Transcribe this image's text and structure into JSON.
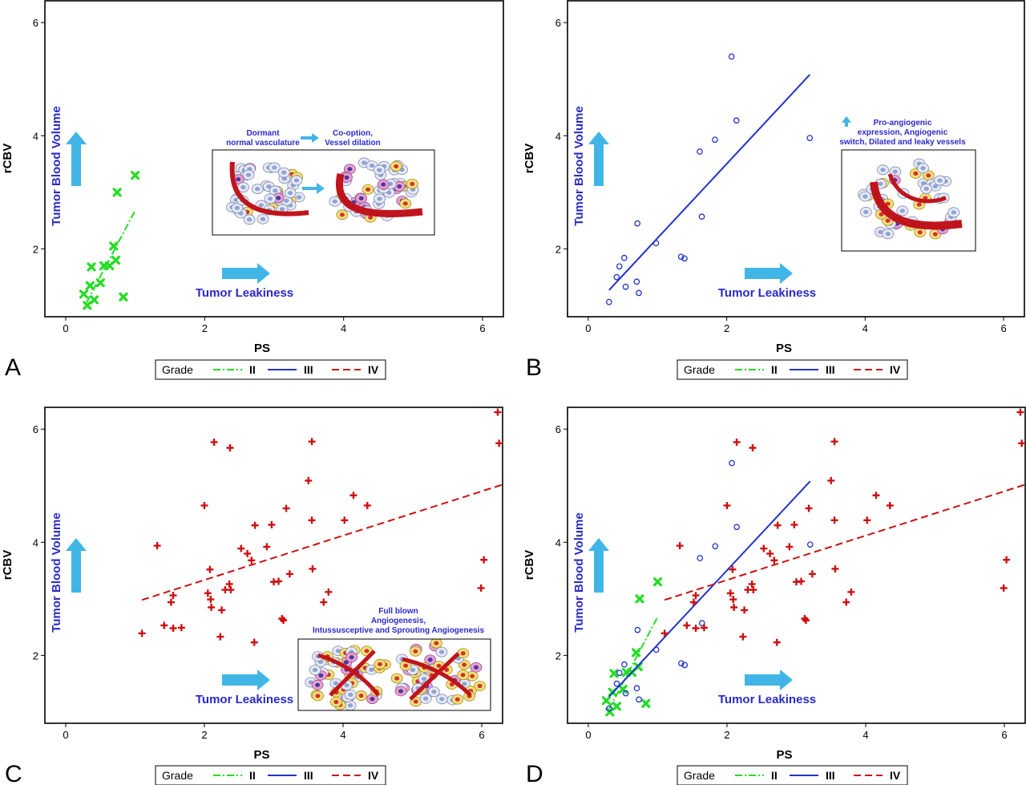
{
  "colors": {
    "grade_II": "#22dd22",
    "grade_III": "#2233cc",
    "grade_IV": "#cc1111",
    "arrow": "#41b6e6",
    "annotation_text": "#2a2ac8",
    "frame": "#000000",
    "vessel": "#c0141c"
  },
  "legend": {
    "title": "Grade",
    "entries": [
      "II",
      "III",
      "IV"
    ]
  },
  "annotations": {
    "y_arrow_label": "Tumor Blood Volume",
    "x_arrow_label": "Tumor Leakiness"
  },
  "insets": {
    "A": {
      "label_left": "Dormant normal vasculature",
      "label_right": "Co-option, Vessel dilation"
    },
    "B": {
      "label": "Pro-angiogenic expression, Angiogenic switch, Dilated and leaky vessels"
    },
    "C": {
      "label": "Full blown Angiogenesis, Intussusceptive and Sprouting Angiogenesis"
    }
  },
  "chart_data": [
    {
      "panel": "A",
      "type": "scatter",
      "xlabel": "PS",
      "ylabel": "rCBV",
      "xlim": [
        -0.3,
        6.3
      ],
      "ylim": [
        0.8,
        6.4
      ],
      "xticks": [
        0,
        2,
        4,
        6
      ],
      "yticks": [
        2,
        4,
        6
      ],
      "series": [
        {
          "name": "II",
          "marker": "x",
          "points": [
            [
              1.0,
              3.3
            ],
            [
              0.74,
              3.0
            ],
            [
              0.69,
              2.05
            ],
            [
              0.72,
              1.8
            ],
            [
              0.63,
              1.7
            ],
            [
              0.55,
              1.7
            ],
            [
              0.37,
              1.68
            ],
            [
              0.5,
              1.4
            ],
            [
              0.35,
              1.35
            ],
            [
              0.26,
              1.2
            ],
            [
              0.41,
              1.1
            ],
            [
              0.83,
              1.15
            ],
            [
              0.31,
              1.0
            ]
          ],
          "fit": [
            [
              0.3,
              1.05
            ],
            [
              1.0,
              2.68
            ]
          ]
        }
      ]
    },
    {
      "panel": "B",
      "type": "scatter",
      "xlabel": "PS",
      "ylabel": "rCBV",
      "xlim": [
        -0.3,
        6.3
      ],
      "ylim": [
        0.8,
        6.4
      ],
      "xticks": [
        0,
        2,
        4,
        6
      ],
      "yticks": [
        2,
        4,
        6
      ],
      "series": [
        {
          "name": "III",
          "marker": "o",
          "points": [
            [
              2.07,
              5.4
            ],
            [
              2.14,
              4.27
            ],
            [
              3.2,
              3.96
            ],
            [
              1.83,
              3.93
            ],
            [
              1.61,
              3.72
            ],
            [
              1.64,
              2.57
            ],
            [
              0.71,
              2.45
            ],
            [
              0.98,
              2.1
            ],
            [
              1.34,
              1.86
            ],
            [
              1.39,
              1.83
            ],
            [
              0.52,
              1.84
            ],
            [
              0.45,
              1.69
            ],
            [
              0.41,
              1.5
            ],
            [
              0.7,
              1.42
            ],
            [
              0.54,
              1.33
            ],
            [
              0.73,
              1.22
            ],
            [
              0.3,
              1.06
            ]
          ],
          "fit": [
            [
              0.3,
              1.27
            ],
            [
              3.2,
              5.08
            ]
          ]
        }
      ]
    },
    {
      "panel": "C",
      "type": "scatter",
      "xlabel": "PS",
      "ylabel": "rCBV",
      "xlim": [
        -0.3,
        6.3
      ],
      "ylim": [
        0.8,
        6.4
      ],
      "xticks": [
        0,
        2,
        4,
        6
      ],
      "yticks": [
        2,
        4,
        6
      ],
      "series": [
        {
          "name": "IV",
          "marker": "+",
          "points": [
            [
              6.23,
              6.3
            ],
            [
              6.25,
              5.75
            ],
            [
              2.14,
              5.77
            ],
            [
              3.55,
              5.78
            ],
            [
              2.37,
              5.67
            ],
            [
              3.5,
              5.09
            ],
            [
              4.15,
              4.83
            ],
            [
              2.0,
              4.65
            ],
            [
              4.35,
              4.65
            ],
            [
              3.18,
              4.6
            ],
            [
              4.02,
              4.39
            ],
            [
              3.55,
              4.39
            ],
            [
              2.73,
              4.3
            ],
            [
              2.97,
              4.31
            ],
            [
              1.32,
              3.94
            ],
            [
              2.53,
              3.89
            ],
            [
              2.9,
              3.92
            ],
            [
              2.62,
              3.8
            ],
            [
              2.68,
              3.68
            ],
            [
              6.03,
              3.69
            ],
            [
              2.08,
              3.52
            ],
            [
              3.56,
              3.53
            ],
            [
              3.23,
              3.44
            ],
            [
              3.0,
              3.3
            ],
            [
              3.07,
              3.31
            ],
            [
              2.36,
              3.26
            ],
            [
              1.55,
              3.06
            ],
            [
              2.3,
              3.16
            ],
            [
              2.38,
              3.16
            ],
            [
              3.79,
              3.12
            ],
            [
              5.99,
              3.19
            ],
            [
              2.05,
              3.1
            ],
            [
              1.52,
              2.94
            ],
            [
              2.09,
              2.99
            ],
            [
              2.1,
              2.85
            ],
            [
              3.12,
              2.65
            ],
            [
              3.72,
              2.94
            ],
            [
              3.14,
              2.62
            ],
            [
              1.42,
              2.53
            ],
            [
              1.55,
              2.48
            ],
            [
              1.67,
              2.49
            ],
            [
              2.25,
              2.8
            ],
            [
              1.1,
              2.39
            ],
            [
              2.23,
              2.33
            ],
            [
              2.72,
              2.23
            ]
          ],
          "fit": [
            [
              1.1,
              2.98
            ],
            [
              6.3,
              5.02
            ]
          ]
        }
      ]
    },
    {
      "panel": "D",
      "type": "scatter",
      "xlabel": "PS",
      "ylabel": "rCBV",
      "xlim": [
        -0.3,
        6.3
      ],
      "ylim": [
        0.8,
        6.4
      ],
      "xticks": [
        0,
        2,
        4,
        6
      ],
      "yticks": [
        2,
        4,
        6
      ],
      "series": [
        {
          "name": "II",
          "ref": "A"
        },
        {
          "name": "III",
          "ref": "B"
        },
        {
          "name": "IV",
          "ref": "C"
        }
      ]
    }
  ]
}
